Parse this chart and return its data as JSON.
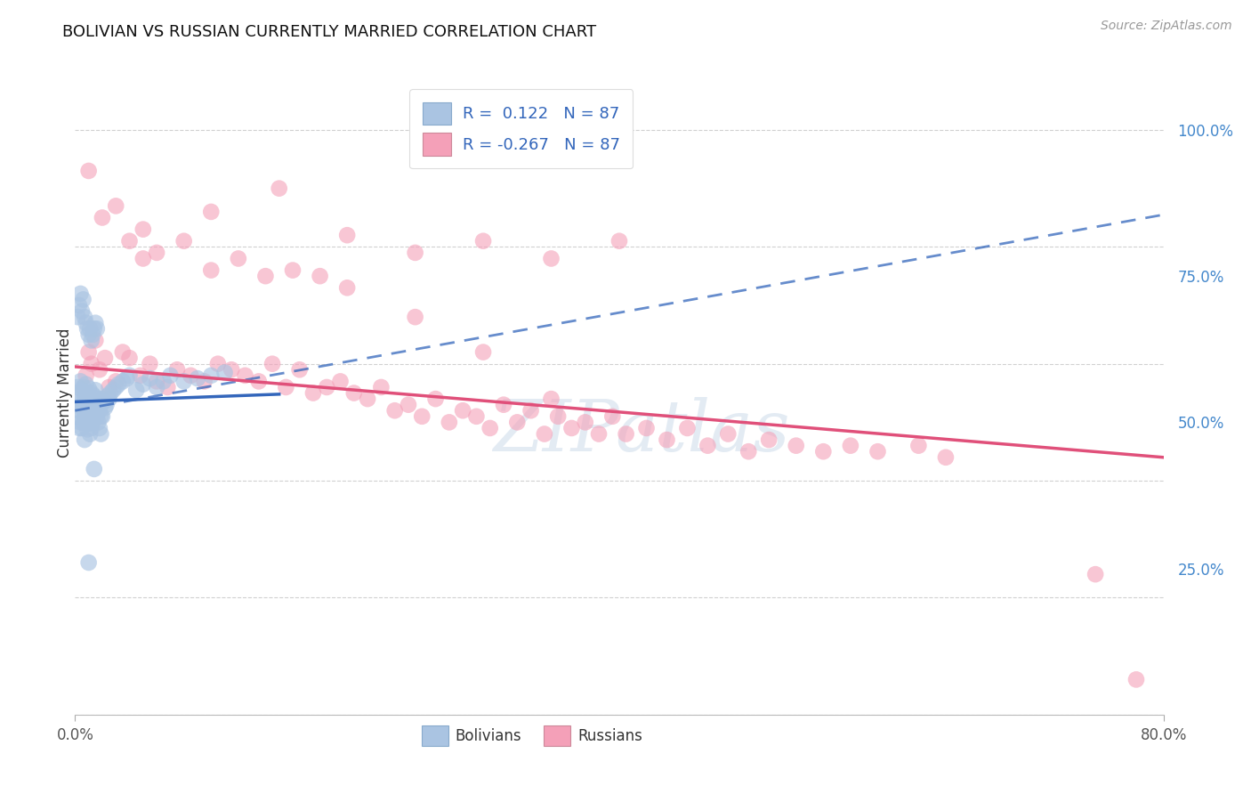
{
  "title": "BOLIVIAN VS RUSSIAN CURRENTLY MARRIED CORRELATION CHART",
  "source": "Source: ZipAtlas.com",
  "ylabel": "Currently Married",
  "legend_r_blue": " 0.122",
  "legend_r_pink": "-0.267",
  "legend_n": "87",
  "bolivian_color": "#aac4e2",
  "russian_color": "#f4a0b8",
  "blue_line_color": "#3366bb",
  "pink_line_color": "#e0507a",
  "xmin": 0.0,
  "xmax": 0.8,
  "ymin": 0.0,
  "ymax": 1.1,
  "blue_R": 0.122,
  "pink_R": -0.267,
  "right_ytick_values": [
    0.25,
    0.5,
    0.75,
    1.0
  ],
  "right_ytick_labels": [
    "25.0%",
    "50.0%",
    "75.0%",
    "100.0%"
  ],
  "xtick_values": [
    0.0,
    0.8
  ],
  "xtick_labels": [
    "0.0%",
    "80.0%"
  ],
  "background_color": "#ffffff",
  "grid_color": "#cccccc",
  "bolivians_x": [
    0.001,
    0.002,
    0.002,
    0.003,
    0.003,
    0.004,
    0.004,
    0.004,
    0.005,
    0.005,
    0.005,
    0.006,
    0.006,
    0.006,
    0.007,
    0.007,
    0.007,
    0.008,
    0.008,
    0.008,
    0.009,
    0.009,
    0.009,
    0.01,
    0.01,
    0.01,
    0.011,
    0.011,
    0.011,
    0.012,
    0.012,
    0.012,
    0.013,
    0.013,
    0.014,
    0.014,
    0.015,
    0.015,
    0.016,
    0.016,
    0.017,
    0.017,
    0.018,
    0.018,
    0.019,
    0.019,
    0.02,
    0.02,
    0.021,
    0.022,
    0.023,
    0.024,
    0.025,
    0.026,
    0.028,
    0.03,
    0.032,
    0.035,
    0.038,
    0.04,
    0.045,
    0.05,
    0.055,
    0.06,
    0.065,
    0.07,
    0.08,
    0.09,
    0.1,
    0.11,
    0.002,
    0.003,
    0.004,
    0.005,
    0.006,
    0.007,
    0.008,
    0.009,
    0.01,
    0.011,
    0.012,
    0.013,
    0.014,
    0.015,
    0.016,
    0.014,
    0.01
  ],
  "bolivians_y": [
    0.545,
    0.56,
    0.51,
    0.52,
    0.49,
    0.57,
    0.535,
    0.5,
    0.555,
    0.525,
    0.49,
    0.56,
    0.53,
    0.5,
    0.54,
    0.51,
    0.47,
    0.565,
    0.535,
    0.505,
    0.548,
    0.518,
    0.488,
    0.558,
    0.528,
    0.498,
    0.54,
    0.51,
    0.48,
    0.55,
    0.52,
    0.49,
    0.53,
    0.5,
    0.545,
    0.515,
    0.555,
    0.525,
    0.54,
    0.51,
    0.53,
    0.5,
    0.52,
    0.49,
    0.51,
    0.48,
    0.54,
    0.51,
    0.535,
    0.525,
    0.53,
    0.545,
    0.54,
    0.55,
    0.555,
    0.56,
    0.565,
    0.57,
    0.575,
    0.58,
    0.555,
    0.565,
    0.575,
    0.56,
    0.57,
    0.58,
    0.57,
    0.575,
    0.58,
    0.585,
    0.68,
    0.7,
    0.72,
    0.69,
    0.71,
    0.68,
    0.67,
    0.66,
    0.65,
    0.66,
    0.64,
    0.65,
    0.66,
    0.67,
    0.66,
    0.42,
    0.26
  ],
  "russians_x": [
    0.008,
    0.01,
    0.012,
    0.015,
    0.018,
    0.022,
    0.025,
    0.03,
    0.035,
    0.04,
    0.048,
    0.055,
    0.06,
    0.068,
    0.075,
    0.085,
    0.095,
    0.105,
    0.115,
    0.125,
    0.135,
    0.145,
    0.155,
    0.165,
    0.175,
    0.185,
    0.195,
    0.205,
    0.215,
    0.225,
    0.235,
    0.245,
    0.255,
    0.265,
    0.275,
    0.285,
    0.295,
    0.305,
    0.315,
    0.325,
    0.335,
    0.345,
    0.355,
    0.365,
    0.375,
    0.385,
    0.395,
    0.405,
    0.42,
    0.435,
    0.45,
    0.465,
    0.48,
    0.495,
    0.51,
    0.53,
    0.55,
    0.57,
    0.59,
    0.62,
    0.05,
    0.1,
    0.15,
    0.2,
    0.25,
    0.3,
    0.35,
    0.4,
    0.01,
    0.02,
    0.03,
    0.04,
    0.05,
    0.06,
    0.08,
    0.1,
    0.12,
    0.14,
    0.16,
    0.18,
    0.2,
    0.25,
    0.3,
    0.35,
    0.64,
    0.75,
    0.78
  ],
  "russians_y": [
    0.58,
    0.62,
    0.6,
    0.64,
    0.59,
    0.61,
    0.56,
    0.57,
    0.62,
    0.61,
    0.58,
    0.6,
    0.57,
    0.56,
    0.59,
    0.58,
    0.57,
    0.6,
    0.59,
    0.58,
    0.57,
    0.6,
    0.56,
    0.59,
    0.55,
    0.56,
    0.57,
    0.55,
    0.54,
    0.56,
    0.52,
    0.53,
    0.51,
    0.54,
    0.5,
    0.52,
    0.51,
    0.49,
    0.53,
    0.5,
    0.52,
    0.48,
    0.51,
    0.49,
    0.5,
    0.48,
    0.51,
    0.48,
    0.49,
    0.47,
    0.49,
    0.46,
    0.48,
    0.45,
    0.47,
    0.46,
    0.45,
    0.46,
    0.45,
    0.46,
    0.83,
    0.86,
    0.9,
    0.82,
    0.79,
    0.81,
    0.78,
    0.81,
    0.93,
    0.85,
    0.87,
    0.81,
    0.78,
    0.79,
    0.81,
    0.76,
    0.78,
    0.75,
    0.76,
    0.75,
    0.73,
    0.68,
    0.62,
    0.54,
    0.44,
    0.24,
    0.06
  ],
  "watermark_text": "ZIPatlas",
  "watermark_color": "#c8d8e8",
  "watermark_alpha": 0.5
}
